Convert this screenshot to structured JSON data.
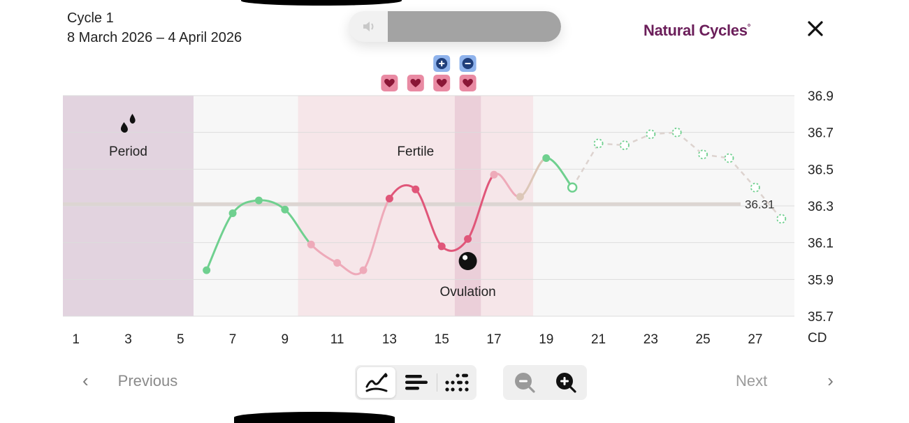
{
  "header": {
    "cycle_title": "Cycle 1",
    "cycle_range": "8 March 2026 – 4 April 2026",
    "brand": "Natural Cycles",
    "brand_mark": "°"
  },
  "icons": {
    "speaker": "speaker-muted-icon",
    "close": "close-icon",
    "drops": "period-drops-icon",
    "ovulation": "ovulation-egg-icon",
    "heart": "heart-icon",
    "test_positive": "plus-test-icon",
    "test_negative": "minus-test-icon"
  },
  "colors": {
    "green": "#6fd08f",
    "pink": "#e05679",
    "light_pink": "#eeaab9",
    "beige": "#dcc7b8",
    "period_band": "#e2d3df",
    "fertile_band": "#f6e6e9",
    "ovulation_band": "#ebcfd9",
    "brand": "#6b1e5a",
    "coverline": "#dcd5d2"
  },
  "chart_data": {
    "type": "line",
    "title": "",
    "xlabel": "CD",
    "ylabel": "",
    "xlim": [
      1,
      28
    ],
    "ylim": [
      35.7,
      36.9
    ],
    "x_ticks": [
      1,
      3,
      5,
      7,
      9,
      11,
      13,
      15,
      17,
      19,
      21,
      23,
      25,
      27
    ],
    "y_ticks": [
      "36.9",
      "36.7",
      "36.5",
      "36.3",
      "36.1",
      "35.9",
      "35.7"
    ],
    "coverline": {
      "value": 36.31,
      "label": "36.31"
    },
    "phases": [
      {
        "name": "period",
        "label": "Period",
        "start_day": 1,
        "end_day": 5
      },
      {
        "name": "fertile",
        "label": "Fertile",
        "start_day": 10,
        "end_day": 18
      },
      {
        "name": "ovulation",
        "label": "Ovulation",
        "start_day": 16,
        "end_day": 16
      }
    ],
    "measured": [
      {
        "day": 6,
        "temp": 35.95,
        "color": "green"
      },
      {
        "day": 7,
        "temp": 36.26,
        "color": "green"
      },
      {
        "day": 8,
        "temp": 36.33,
        "color": "green"
      },
      {
        "day": 9,
        "temp": 36.28,
        "color": "green"
      },
      {
        "day": 10,
        "temp": 36.09,
        "color": "light_pink"
      },
      {
        "day": 11,
        "temp": 35.99,
        "color": "light_pink"
      },
      {
        "day": 12,
        "temp": 35.95,
        "color": "light_pink"
      },
      {
        "day": 13,
        "temp": 36.34,
        "color": "pink"
      },
      {
        "day": 14,
        "temp": 36.39,
        "color": "pink"
      },
      {
        "day": 15,
        "temp": 36.08,
        "color": "pink"
      },
      {
        "day": 16,
        "temp": 36.12,
        "color": "pink"
      },
      {
        "day": 17,
        "temp": 36.47,
        "color": "light_pink"
      },
      {
        "day": 18,
        "temp": 36.35,
        "color": "beige"
      },
      {
        "day": 19,
        "temp": 36.56,
        "color": "green"
      },
      {
        "day": 20,
        "temp": 36.4,
        "color": "green",
        "open": true
      }
    ],
    "predicted": [
      {
        "day": 21,
        "temp": 36.64
      },
      {
        "day": 22,
        "temp": 36.63
      },
      {
        "day": 23,
        "temp": 36.69
      },
      {
        "day": 24,
        "temp": 36.7
      },
      {
        "day": 25,
        "temp": 36.58
      },
      {
        "day": 26,
        "temp": 36.56
      },
      {
        "day": 27,
        "temp": 36.4
      },
      {
        "day": 28,
        "temp": 36.23
      }
    ],
    "intercourse_days": [
      13,
      14,
      15,
      16
    ],
    "tests": [
      {
        "day": 15,
        "result": "positive"
      },
      {
        "day": 16,
        "result": "negative"
      }
    ]
  },
  "footer": {
    "previous_label": "Previous",
    "next_label": "Next",
    "chevron_left": "‹",
    "chevron_right": "›",
    "view_modes": [
      "curve-view-icon",
      "list-view-icon",
      "dots-view-icon"
    ],
    "active_view": "curve-view-icon",
    "zoom": [
      "zoom-out-icon",
      "zoom-in-icon"
    ]
  }
}
